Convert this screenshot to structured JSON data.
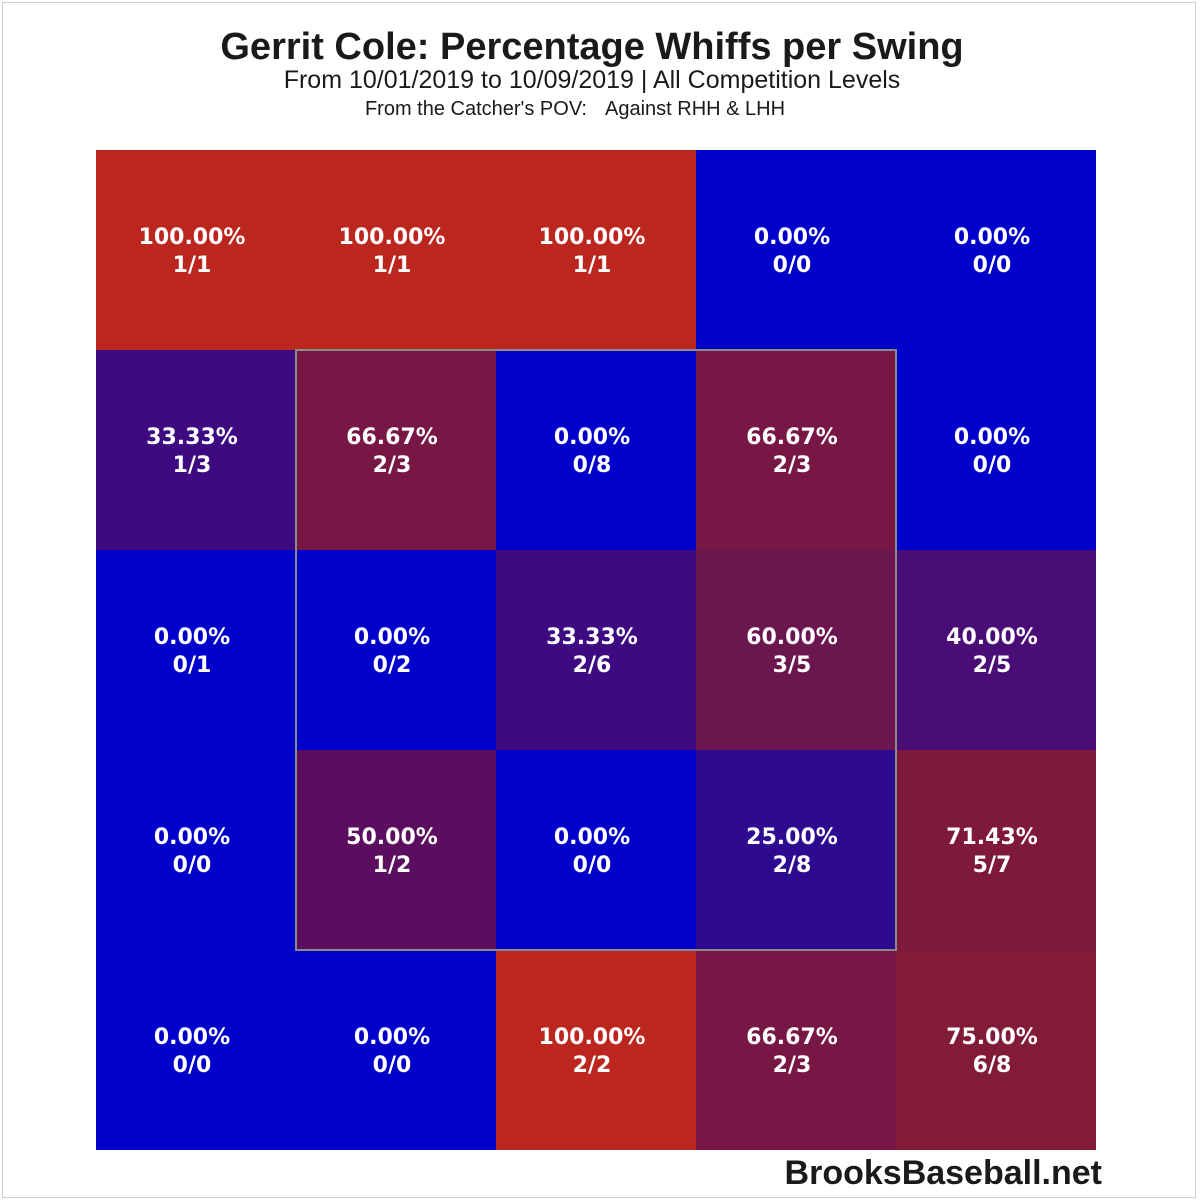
{
  "chart_data": {
    "type": "heatmap",
    "title": "Gerrit Cole: Percentage Whiffs per Swing",
    "subtitle": "From 10/01/2019 to 10/09/2019 | All Competition Levels",
    "subtitle2_left": "From the Catcher's POV:",
    "subtitle2_right": "Against RHH & LHH",
    "rows": 5,
    "cols": 5,
    "strike_zone": {
      "row_start": 1,
      "row_end": 3,
      "col_start": 1,
      "col_end": 3
    },
    "cells": [
      [
        {
          "pct": "100.00%",
          "ratio": "1/1",
          "color": "#bb271e"
        },
        {
          "pct": "100.00%",
          "ratio": "1/1",
          "color": "#bb271e"
        },
        {
          "pct": "100.00%",
          "ratio": "1/1",
          "color": "#bb271e"
        },
        {
          "pct": "0.00%",
          "ratio": "0/0",
          "color": "#0000cb"
        },
        {
          "pct": "0.00%",
          "ratio": "0/0",
          "color": "#0000cb"
        }
      ],
      [
        {
          "pct": "33.33%",
          "ratio": "1/3",
          "color": "#3d0a82"
        },
        {
          "pct": "66.67%",
          "ratio": "2/3",
          "color": "#771745"
        },
        {
          "pct": "0.00%",
          "ratio": "0/8",
          "color": "#0000cb"
        },
        {
          "pct": "66.67%",
          "ratio": "2/3",
          "color": "#771745"
        },
        {
          "pct": "0.00%",
          "ratio": "0/0",
          "color": "#0000cb"
        }
      ],
      [
        {
          "pct": "0.00%",
          "ratio": "0/1",
          "color": "#0000cb"
        },
        {
          "pct": "0.00%",
          "ratio": "0/2",
          "color": "#0000cb"
        },
        {
          "pct": "33.33%",
          "ratio": "2/6",
          "color": "#3d0a82"
        },
        {
          "pct": "60.00%",
          "ratio": "3/5",
          "color": "#6c1650"
        },
        {
          "pct": "40.00%",
          "ratio": "2/5",
          "color": "#4a0c77"
        }
      ],
      [
        {
          "pct": "0.00%",
          "ratio": "0/0",
          "color": "#0000cb"
        },
        {
          "pct": "50.00%",
          "ratio": "1/2",
          "color": "#5b0e60"
        },
        {
          "pct": "0.00%",
          "ratio": "0/0",
          "color": "#0000cb"
        },
        {
          "pct": "25.00%",
          "ratio": "2/8",
          "color": "#2e0a91"
        },
        {
          "pct": "71.43%",
          "ratio": "5/7",
          "color": "#7e183d"
        }
      ],
      [
        {
          "pct": "0.00%",
          "ratio": "0/0",
          "color": "#0000cb"
        },
        {
          "pct": "0.00%",
          "ratio": "0/0",
          "color": "#0000cb"
        },
        {
          "pct": "100.00%",
          "ratio": "2/2",
          "color": "#bb271e"
        },
        {
          "pct": "66.67%",
          "ratio": "2/3",
          "color": "#771745"
        },
        {
          "pct": "75.00%",
          "ratio": "6/8",
          "color": "#821a3a"
        }
      ]
    ]
  },
  "footer": {
    "brand": "BrooksBaseball.net"
  }
}
